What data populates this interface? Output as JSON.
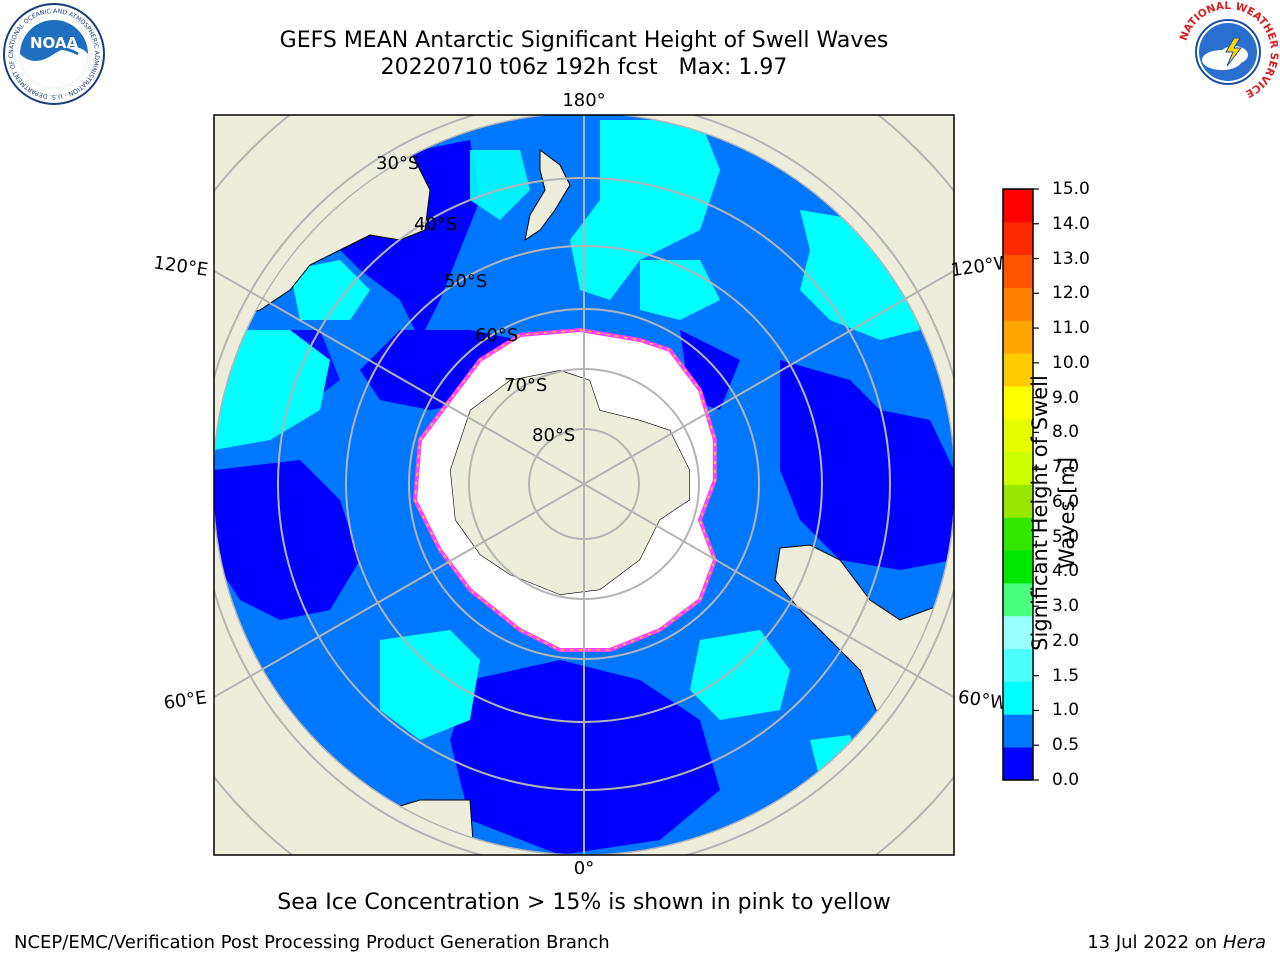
{
  "title": {
    "line1": "GEFS MEAN Antarctic Significant Height of Swell Waves",
    "line2": "20220710 t06z 192h fcst   Max: 1.97"
  },
  "logos": {
    "noaa": {
      "text": "NOAA",
      "ring_text": "NATIONAL OCEANIC AND ATMOSPHERIC ADMINISTRATION · U.S. DEPARTMENT OF COMMERCE"
    },
    "nws": {
      "ring_text": "NATIONAL WEATHER SERVICE"
    }
  },
  "map": {
    "projection": "south-polar-stereographic",
    "longitude_labels": {
      "top": "180°",
      "bottom": "0°",
      "upper_left": "120°E",
      "upper_right": "120°W",
      "lower_left": "60°E",
      "lower_right": "60°W"
    },
    "latitude_labels": [
      "30°S",
      "40°S",
      "50°S",
      "60°S",
      "70°S",
      "80°S"
    ],
    "colors": {
      "land": "#EEEDDC",
      "grid": "#B4B4B4",
      "ice": "#FFFFFF",
      "ice_edge": "#FF40FF"
    }
  },
  "colorbar": {
    "label": "Significant Height of Swell Waves [m]",
    "label_line1": "Significant Height of Swell",
    "label_line2": "Waves [m]",
    "ticks": [
      "0.0",
      "0.5",
      "1.0",
      "1.5",
      "2.0",
      "3.0",
      "4.0",
      "5.0",
      "6.0",
      "7.0",
      "8.0",
      "9.0",
      "10.0",
      "11.0",
      "12.0",
      "13.0",
      "14.0",
      "15.0"
    ],
    "colors": [
      "#0000FF",
      "#0077FF",
      "#00FFFF",
      "#4DFFFF",
      "#99FFFF",
      "#4DFF80",
      "#00E600",
      "#33E600",
      "#99E600",
      "#CCFF00",
      "#E6FF00",
      "#FFFF00",
      "#FFCC00",
      "#FFA500",
      "#FF8000",
      "#FF5500",
      "#FF2A00",
      "#FF0000"
    ]
  },
  "caption": "Sea Ice Concentration > 15% is shown in pink to yellow",
  "footer": {
    "left": "NCEP/EMC/Verification Post Processing Product Generation Branch",
    "right_date": "13 Jul 2022 on ",
    "right_machine": "Hera"
  }
}
